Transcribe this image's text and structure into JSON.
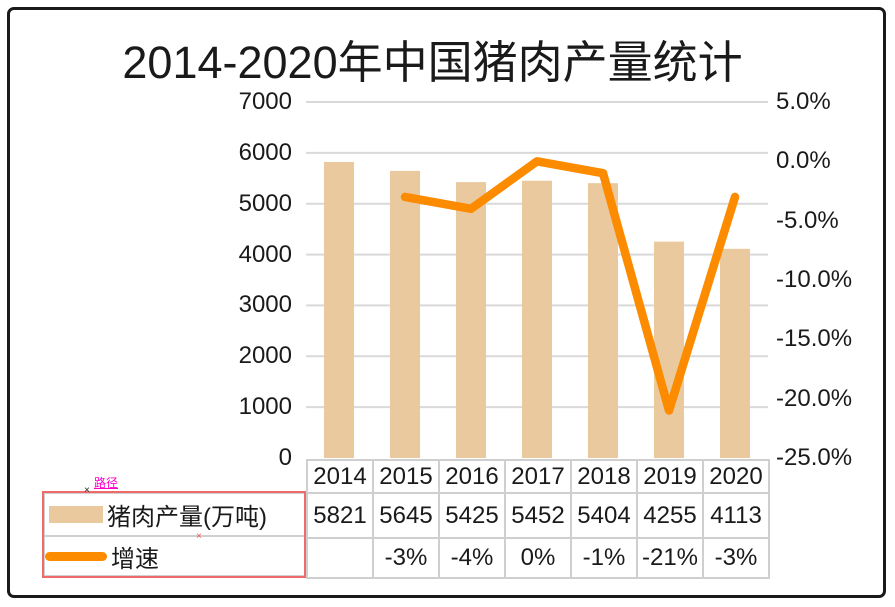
{
  "title": "2014-2020年中国猪肉产量统计",
  "chart_data": {
    "type": "combo",
    "title": "2014-2020年中国猪肉产量统计",
    "categories": [
      "2014",
      "2015",
      "2016",
      "2017",
      "2018",
      "2019",
      "2020"
    ],
    "series": [
      {
        "name": "猪肉产量(万吨)",
        "type": "bar",
        "axis": "left",
        "color": "#ebc99e",
        "values": [
          5821,
          5645,
          5425,
          5452,
          5404,
          4255,
          4113
        ],
        "display": [
          "5821",
          "5645",
          "5425",
          "5452",
          "5404",
          "4255",
          "4113"
        ]
      },
      {
        "name": "增速",
        "type": "line",
        "axis": "right",
        "color": "#fc8b00",
        "values": [
          null,
          -3,
          -4,
          0,
          -1,
          -21,
          -3
        ],
        "display": [
          "",
          "-3%",
          "-4%",
          "0%",
          "-1%",
          "-21%",
          "-3%"
        ]
      }
    ],
    "left_axis": {
      "min": 0,
      "max": 7000,
      "tick_step": 1000,
      "ticks": [
        "7000",
        "6000",
        "5000",
        "4000",
        "3000",
        "2000",
        "1000",
        "0"
      ]
    },
    "right_axis": {
      "min": -25,
      "max": 5,
      "tick_step": 5,
      "ticks": [
        "5.0%",
        "0.0%",
        "-5.0%",
        "-10.0%",
        "-15.0%",
        "-20.0%",
        "-25.0%"
      ]
    },
    "grid": true,
    "legend_position": "bottom-left-table",
    "legend": [
      {
        "label": "猪肉产量(万吨)",
        "swatch": "bar"
      },
      {
        "label": "增速",
        "swatch": "line"
      }
    ]
  },
  "annotations": {
    "path_label": "路径",
    "marker_black": "×",
    "marker_red": "×"
  },
  "colors": {
    "bar": "#ebc99e",
    "line": "#fc8b00",
    "grid": "#d9d9d9",
    "table_border": "#cfcfcf",
    "legend_box": "#ef6b6b",
    "annotation_pink": "#ff00cc",
    "frame": "#1a1a1a"
  }
}
